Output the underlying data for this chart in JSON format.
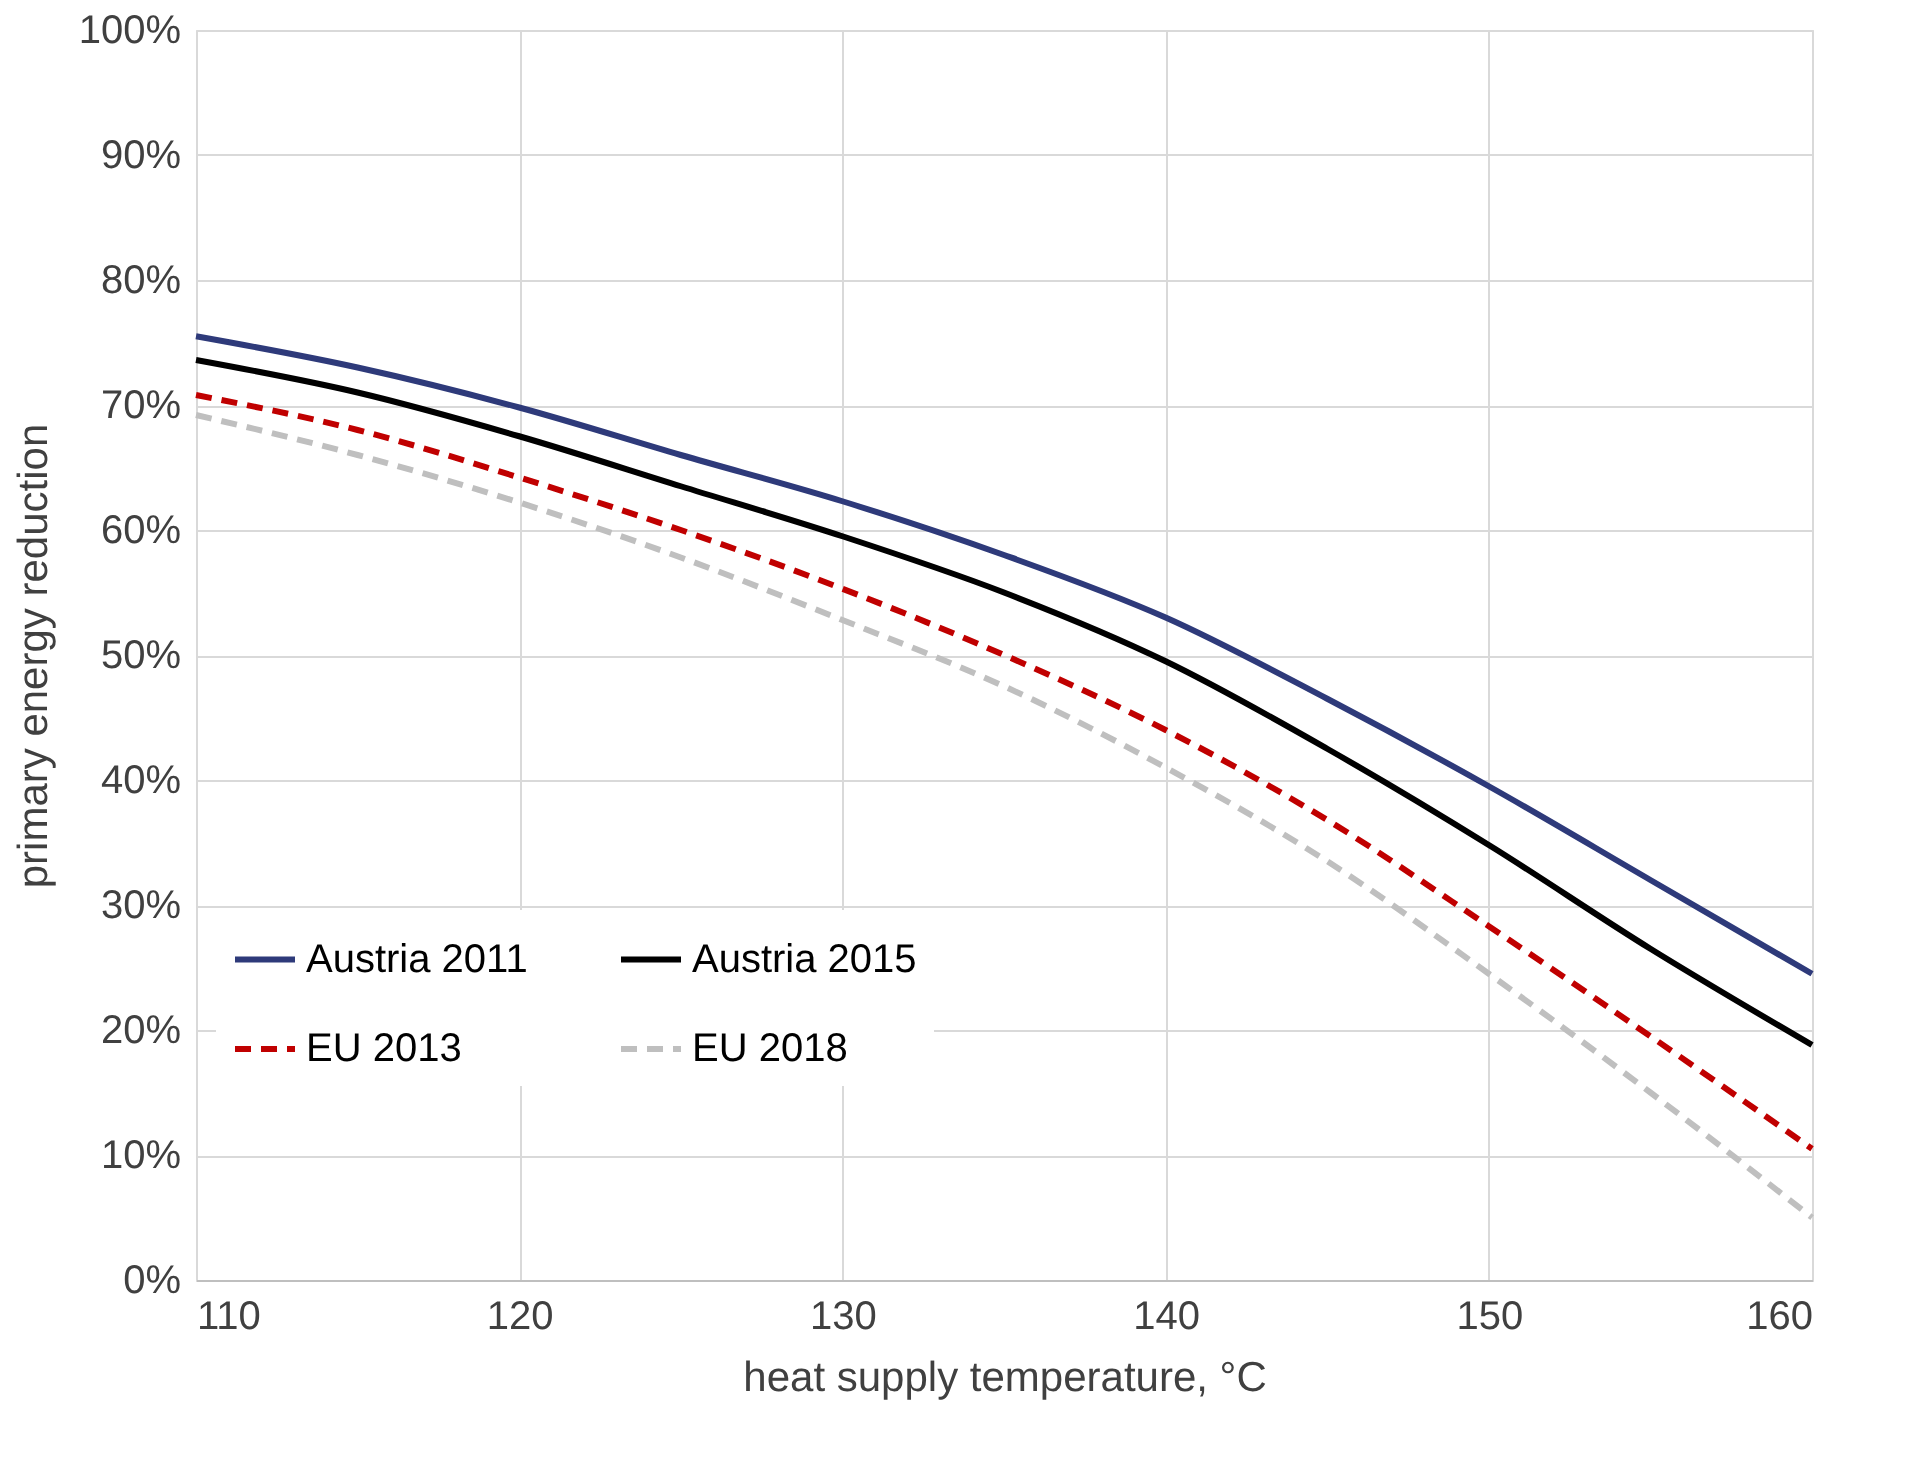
{
  "chart_data": {
    "type": "line",
    "xlabel": "heat supply temperature, °C",
    "ylabel": "primary energy reduction",
    "x": [
      110,
      115,
      120,
      125,
      130,
      135,
      140,
      145,
      150,
      155,
      160
    ],
    "series": [
      {
        "name": "Austria 2011",
        "color": "#2e3a7a",
        "line_style": "solid",
        "values": [
          75.5,
          73,
          69.8,
          66,
          62.3,
          58,
          53,
          46.5,
          39.5,
          32,
          24.5
        ]
      },
      {
        "name": "Austria 2015",
        "color": "#000000",
        "line_style": "solid",
        "values": [
          73.6,
          71,
          67.5,
          63.5,
          59.5,
          55,
          49.5,
          42.5,
          34.8,
          26.5,
          18.8
        ]
      },
      {
        "name": "EU 2013",
        "color": "#c00000",
        "line_style": "dashed",
        "values": [
          70.8,
          68,
          64.2,
          60,
          55.3,
          50,
          44,
          36.8,
          28.3,
          19.5,
          10.5
        ]
      },
      {
        "name": "EU 2018",
        "color": "#bfbfbf",
        "line_style": "dashed",
        "values": [
          69.2,
          66,
          62.2,
          57.8,
          52.8,
          47.5,
          41,
          33.5,
          24.5,
          15,
          5
        ]
      }
    ],
    "xlim": [
      110,
      160
    ],
    "xticks": [
      110,
      120,
      130,
      140,
      150,
      160
    ],
    "ylim": [
      0,
      100
    ],
    "yticks": [
      {
        "value": 0,
        "label": "0%"
      },
      {
        "value": 10,
        "label": "10%"
      },
      {
        "value": 20,
        "label": "20%"
      },
      {
        "value": 30,
        "label": "30%"
      },
      {
        "value": 40,
        "label": "40%"
      },
      {
        "value": 50,
        "label": "50%"
      },
      {
        "value": 60,
        "label": "60%"
      },
      {
        "value": 70,
        "label": "70%"
      },
      {
        "value": 80,
        "label": "80%"
      },
      {
        "value": 90,
        "label": "90%"
      },
      {
        "value": 100,
        "label": "100%"
      }
    ],
    "grid": true,
    "legend": "bottom left",
    "marker": "none"
  }
}
